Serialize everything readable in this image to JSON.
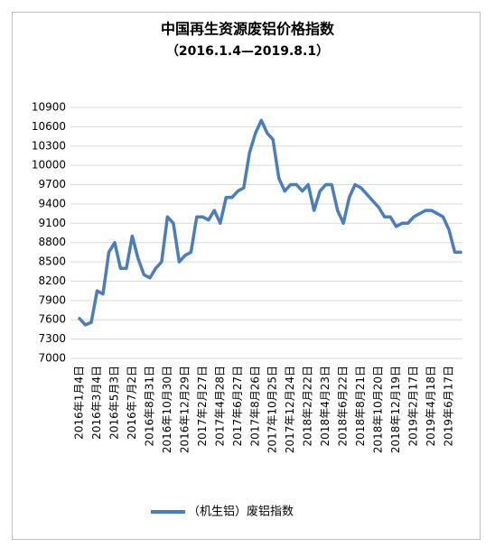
{
  "chart_data": {
    "type": "line",
    "title": "中国再生资源废铝价格指数",
    "subtitle": "（2016.1.4—2019.8.1）",
    "categories": [
      "2016年1月4日",
      null,
      null,
      "2016年3月4日",
      null,
      null,
      "2016年5月3日",
      null,
      null,
      "2016年7月2日",
      null,
      null,
      "2016年8月31日",
      null,
      null,
      "2016年10月30日",
      null,
      null,
      "2016年12月29日",
      null,
      null,
      "2017年2月27日",
      null,
      null,
      "2017年4月28日",
      null,
      null,
      "2017年6月27日",
      null,
      null,
      "2017年8月26日",
      null,
      null,
      "2017年10月25日",
      null,
      null,
      "2017年12月24日",
      null,
      null,
      "2018年2月22日",
      null,
      null,
      "2018年4月23日",
      null,
      null,
      "2018年6月22日",
      null,
      null,
      "2018年8月21日",
      null,
      null,
      "2018年10月20日",
      null,
      null,
      "2018年12月19日",
      null,
      null,
      "2019年2月17日",
      null,
      null,
      "2019年4月18日",
      null,
      null,
      "2019年6月17日",
      null,
      null
    ],
    "series": [
      {
        "name": "（机生铝）废铝指数",
        "color": "#4a7ebb",
        "values": [
          7620,
          7520,
          7560,
          8050,
          8000,
          8650,
          8800,
          8400,
          8400,
          8900,
          8550,
          8300,
          8250,
          8400,
          8500,
          9200,
          9100,
          8500,
          8600,
          8650,
          9200,
          9200,
          9150,
          9300,
          9100,
          9500,
          9500,
          9600,
          9650,
          10200,
          10500,
          10700,
          10500,
          10400,
          9800,
          9600,
          9700,
          9700,
          9600,
          9700,
          9300,
          9600,
          9700,
          9700,
          9300,
          9100,
          9500,
          9700,
          9650,
          9550,
          9450,
          9350,
          9200,
          9200,
          9050,
          9100,
          9100,
          9200,
          9250,
          9300,
          9300,
          9250,
          9200,
          9000,
          8650,
          8650
        ]
      }
    ],
    "ylim": [
      7000,
      10900
    ],
    "yticks": [
      7000,
      7300,
      7600,
      7900,
      8200,
      8500,
      8800,
      9100,
      9400,
      9700,
      10000,
      10300,
      10600,
      10900
    ],
    "grid": true,
    "legend": "bottom"
  }
}
